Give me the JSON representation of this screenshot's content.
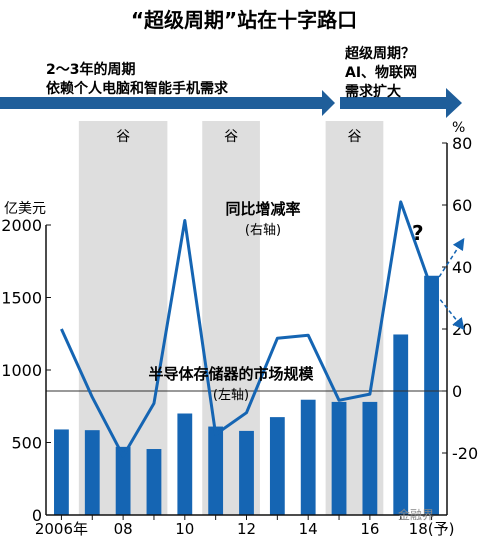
{
  "title": "“超级周期”站在十字路口",
  "banner_left": {
    "line1": "2～3年的周期",
    "line2": "依赖个人电脑和智能手机需求"
  },
  "banner_right": {
    "line1": "超级周期？",
    "line2": "AI、物联网",
    "line3": "需求扩大"
  },
  "watermark": "金融界",
  "colors": {
    "bar": "#1565b3",
    "line": "#1565b3",
    "arrow": "#1f5e9a",
    "shade": "#dedede",
    "axis": "#111111"
  },
  "chart_data": {
    "type": "bar+line",
    "categories": [
      "2006",
      "2007",
      "2008",
      "2009",
      "2010",
      "2011",
      "2012",
      "2013",
      "2014",
      "2015",
      "2016",
      "2017",
      "2018"
    ],
    "x_tick_labels": [
      {
        "index": 0,
        "label": "2006年"
      },
      {
        "index": 2,
        "label": "08"
      },
      {
        "index": 4,
        "label": "10"
      },
      {
        "index": 6,
        "label": "12"
      },
      {
        "index": 8,
        "label": "14"
      },
      {
        "index": 10,
        "label": "16"
      },
      {
        "index": 12,
        "label": "18(予)"
      }
    ],
    "bar_series": {
      "name": "半导体存储器的市场规模",
      "axis_note": "(左轴)",
      "values": [
        590,
        585,
        470,
        455,
        700,
        610,
        580,
        675,
        795,
        780,
        780,
        1245,
        1650
      ]
    },
    "line_series": {
      "name": "同比增减率",
      "axis_note": "(右轴)",
      "values": [
        20,
        -2,
        -21,
        -4,
        55,
        -14,
        -7,
        17,
        18,
        -3,
        -1,
        61,
        33
      ],
      "forecast_note": "?"
    },
    "left_axis": {
      "unit_label": "亿美元",
      "ylim": [
        0,
        2000
      ],
      "ticks": [
        "0",
        "500",
        "1000",
        "1500",
        "2000"
      ]
    },
    "right_axis": {
      "unit_label": "%",
      "ylim": [
        -40,
        80
      ],
      "ticks": [
        "-20",
        "0",
        "20",
        "40",
        "60",
        "80"
      ]
    },
    "trough_label": "谷",
    "troughs": [
      [
        1,
        3
      ],
      [
        5,
        6
      ],
      [
        9,
        10
      ]
    ]
  }
}
